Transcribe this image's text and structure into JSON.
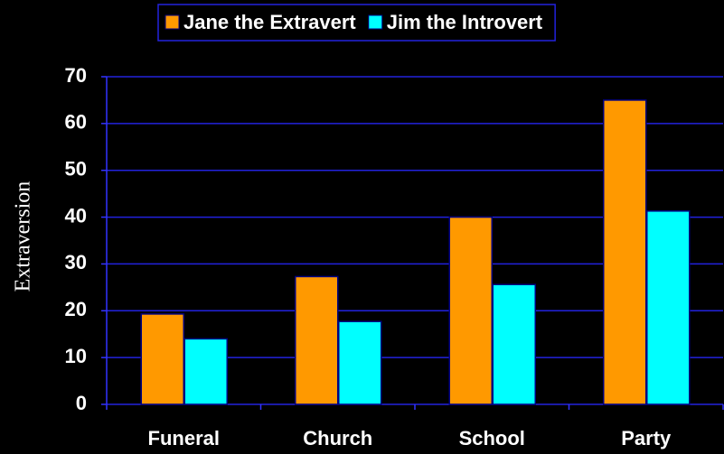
{
  "chart_data": {
    "type": "bar",
    "y_label": "Extraversion",
    "categories": [
      "Funeral",
      "Church",
      "School",
      "Party"
    ],
    "series": [
      {
        "name": "Jane the Extravert",
        "color": "#ff9900",
        "values": [
          19.3,
          27.3,
          40,
          65
        ]
      },
      {
        "name": "Jim the Introvert",
        "color": "#00ffff",
        "values": [
          14,
          17.7,
          25.6,
          41.3
        ]
      }
    ],
    "ylim": [
      0,
      70
    ],
    "yticks": [
      0,
      10,
      20,
      30,
      40,
      50,
      60,
      70
    ],
    "grid": true,
    "legend": "top"
  }
}
